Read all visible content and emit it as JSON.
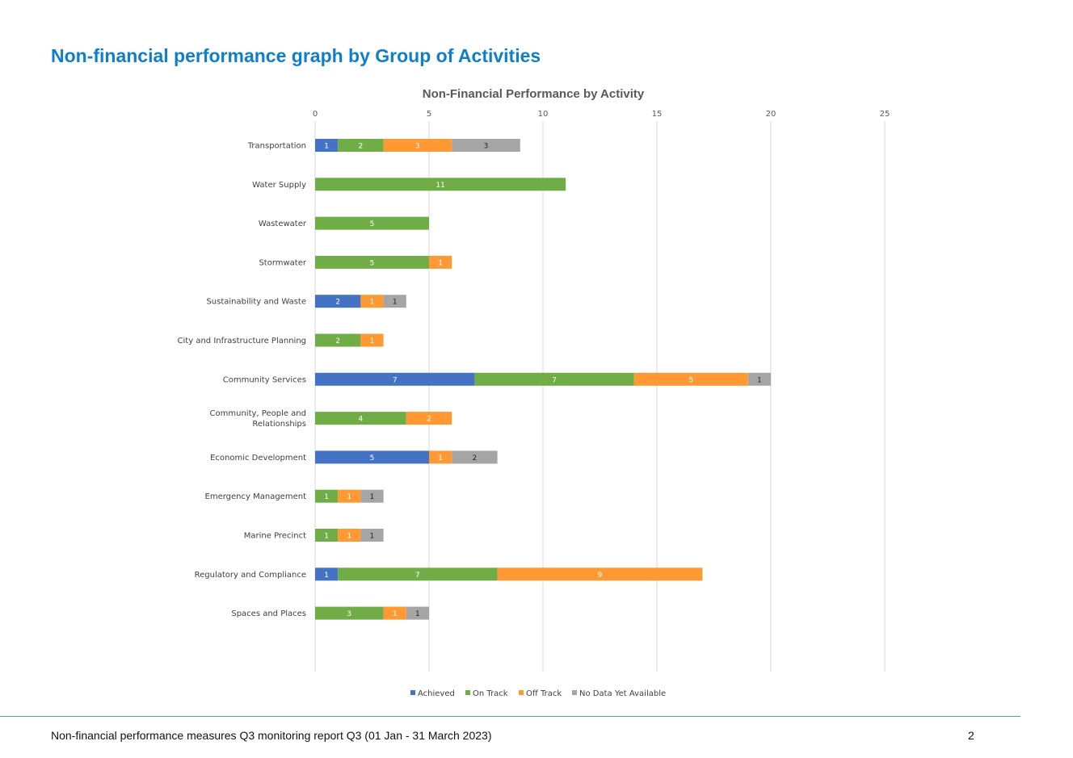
{
  "page": {
    "heading": "Non-financial performance graph by Group of Activities",
    "footer": "Non-financial performance measures Q3 monitoring report Q3 (01 Jan - 31 March 2023)",
    "page_number": "2"
  },
  "chart_data": {
    "type": "bar",
    "orientation": "horizontal",
    "stacked": true,
    "title": "Non-Financial Performance by Activity",
    "x_ticks": [
      0,
      5,
      10,
      15,
      20,
      25
    ],
    "xlim": [
      0,
      25
    ],
    "grid": true,
    "legend_position": "bottom",
    "categories": [
      [
        "Transportation"
      ],
      [
        "Water Supply"
      ],
      [
        "Wastewater"
      ],
      [
        "Stormwater"
      ],
      [
        "Sustainability and Waste"
      ],
      [
        "City and Infrastructure Planning"
      ],
      [
        "Community Services"
      ],
      [
        "Community, People and",
        "Relationships"
      ],
      [
        "Economic Development"
      ],
      [
        "Emergency Management"
      ],
      [
        "Marine Precinct"
      ],
      [
        "Regulatory and Compliance"
      ],
      [
        "Spaces and Places"
      ]
    ],
    "series": [
      {
        "name": "Achieved",
        "color": "#4472c4",
        "values": [
          1,
          0,
          0,
          0,
          2,
          0,
          7,
          0,
          5,
          0,
          0,
          1,
          0
        ]
      },
      {
        "name": "On Track",
        "color": "#70ad47",
        "values": [
          2,
          11,
          5,
          5,
          0,
          2,
          7,
          4,
          0,
          1,
          1,
          7,
          3
        ]
      },
      {
        "name": "Off Track",
        "color": "#ff9933",
        "values": [
          3,
          0,
          0,
          1,
          1,
          1,
          5,
          2,
          1,
          1,
          1,
          9,
          1
        ]
      },
      {
        "name": "No Data Yet Available",
        "color": "#a5a5a5",
        "values": [
          3,
          0,
          0,
          0,
          1,
          0,
          1,
          0,
          2,
          1,
          1,
          0,
          1
        ]
      }
    ]
  }
}
